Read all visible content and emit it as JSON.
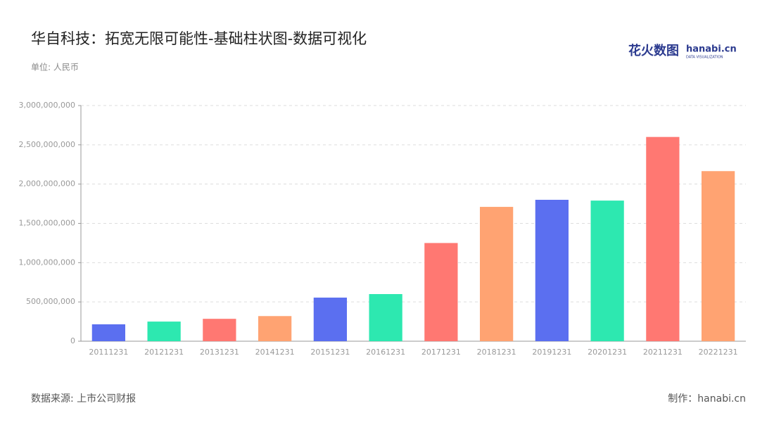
{
  "chart_data": {
    "type": "bar",
    "title": "华自科技：拓宽无限可能性-基础柱状图-数据可视化",
    "subtitle": "单位: 人民币",
    "source": "数据来源: 上市公司财报",
    "credit": "制作：hanabi.cn",
    "logo": {
      "name": "花火数图",
      "site": "hanabi.cn",
      "tagline": "DATA VISUALIZATION"
    },
    "categories": [
      "20111231",
      "20121231",
      "20131231",
      "20141231",
      "20151231",
      "20161231",
      "20171231",
      "20181231",
      "20191231",
      "20201231",
      "20211231",
      "20221231"
    ],
    "values": [
      215000000,
      250000000,
      285000000,
      320000000,
      555000000,
      600000000,
      1250000000,
      1710000000,
      1800000000,
      1790000000,
      2600000000,
      2165000000
    ],
    "colors": [
      "#5b6ff0",
      "#2de8b0",
      "#ff7872",
      "#ffa372",
      "#5b6ff0",
      "#2de8b0",
      "#ff7872",
      "#ffa372",
      "#5b6ff0",
      "#2de8b0",
      "#ff7872",
      "#ffa372"
    ],
    "ylim": [
      0,
      3000000000
    ],
    "yticks": [
      0,
      {
        "value": 500000000,
        "label": "500,000,000"
      },
      {
        "value": 1000000000,
        "label": "1,000,000,000"
      },
      {
        "value": 1500000000,
        "label": "1,500,000,000"
      },
      {
        "value": 2000000000,
        "label": "2,000,000,000"
      },
      {
        "value": 2500000000,
        "label": "2,500,000,000"
      },
      {
        "value": 3000000000,
        "label": "3,000,000,000"
      }
    ],
    "grid": true
  }
}
